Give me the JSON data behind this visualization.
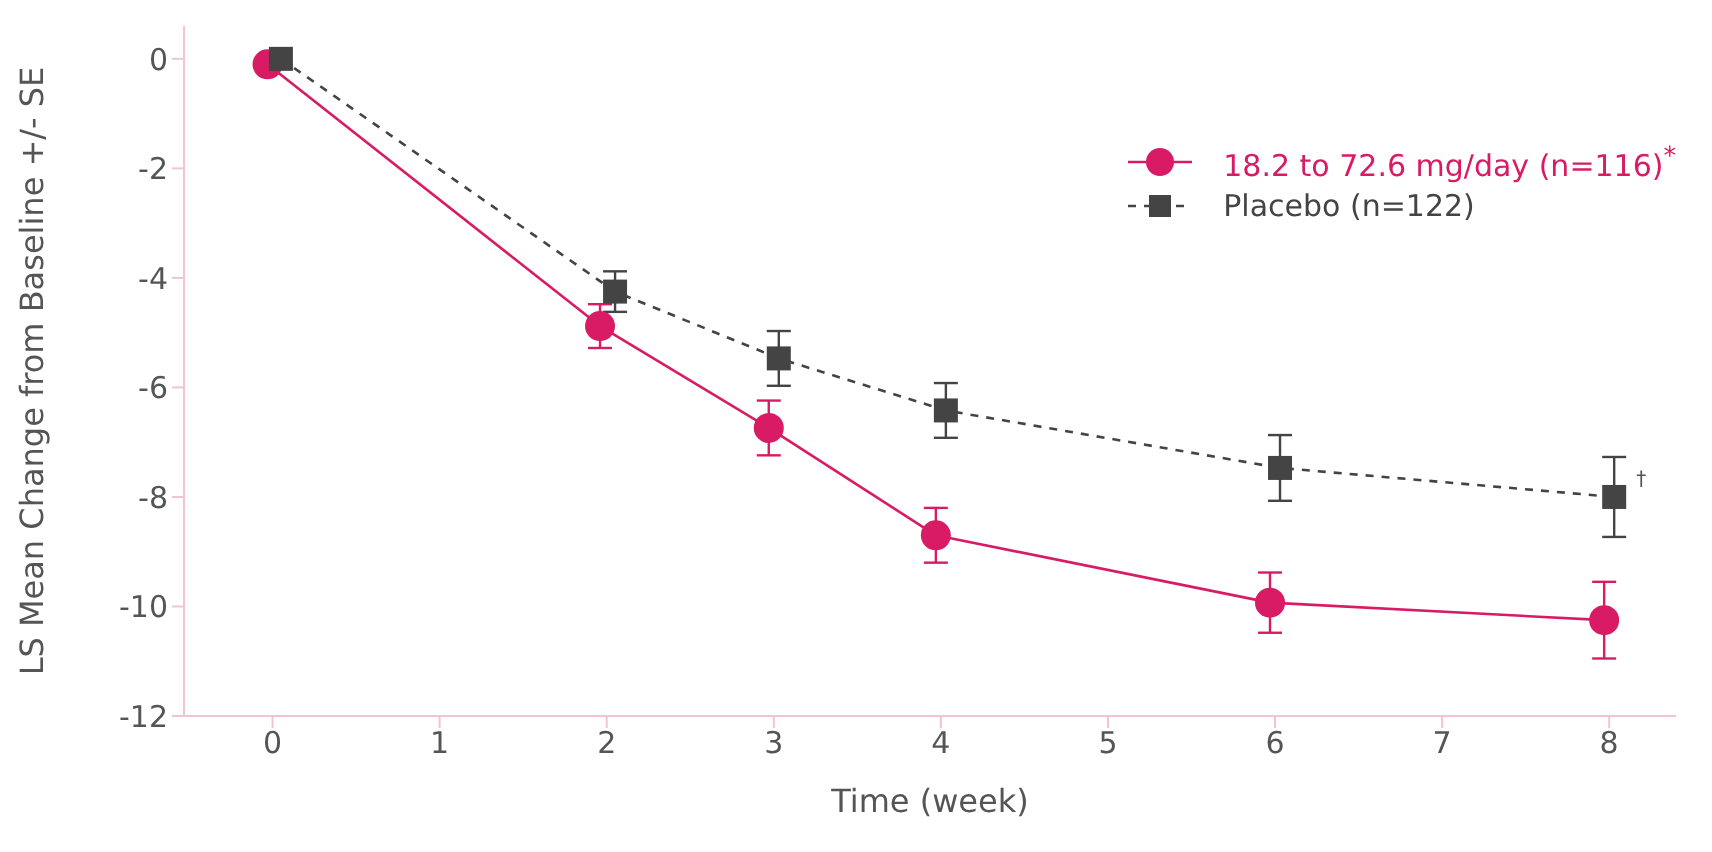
{
  "chart_data": {
    "type": "line",
    "xlabel": "Time (week)",
    "ylabel": "LS Mean Change from Baseline +/- SE",
    "xlim": [
      -0.53,
      8.4
    ],
    "xticks": [
      0,
      1,
      2,
      3,
      4,
      5,
      6,
      7,
      8
    ],
    "ylim": [
      -12,
      0.6
    ],
    "yticks": [
      0,
      -2,
      -4,
      -6,
      -8,
      -10,
      -12
    ],
    "legend": "top right",
    "series": [
      {
        "name": "18.2 to 72.6 mg/day (n=116)$^{*}$",
        "color": "#d81b64",
        "marker": "circle",
        "line_style": "solid",
        "x": [
          -0.03,
          1.96,
          2.97,
          3.97,
          5.97,
          7.97
        ],
        "values": [
          -0.1,
          -4.88,
          -6.74,
          -8.7,
          -9.93,
          -10.25
        ],
        "errors": [
          null,
          0.4,
          0.5,
          0.5,
          0.55,
          0.7
        ]
      },
      {
        "name": "Placebo (n=122)",
        "color": "#444444",
        "marker": "square",
        "line_style": "dashed",
        "x": [
          0.05,
          2.05,
          3.03,
          4.03,
          6.03,
          8.03
        ],
        "values": [
          0,
          -4.25,
          -5.47,
          -6.42,
          -7.47,
          -8.0
        ],
        "errors": [
          null,
          0.37,
          0.5,
          0.5,
          0.6,
          0.73
        ]
      }
    ],
    "annotations": [
      {
        "text": "†",
        "x": 8.03,
        "y": -8.0
      }
    ]
  }
}
